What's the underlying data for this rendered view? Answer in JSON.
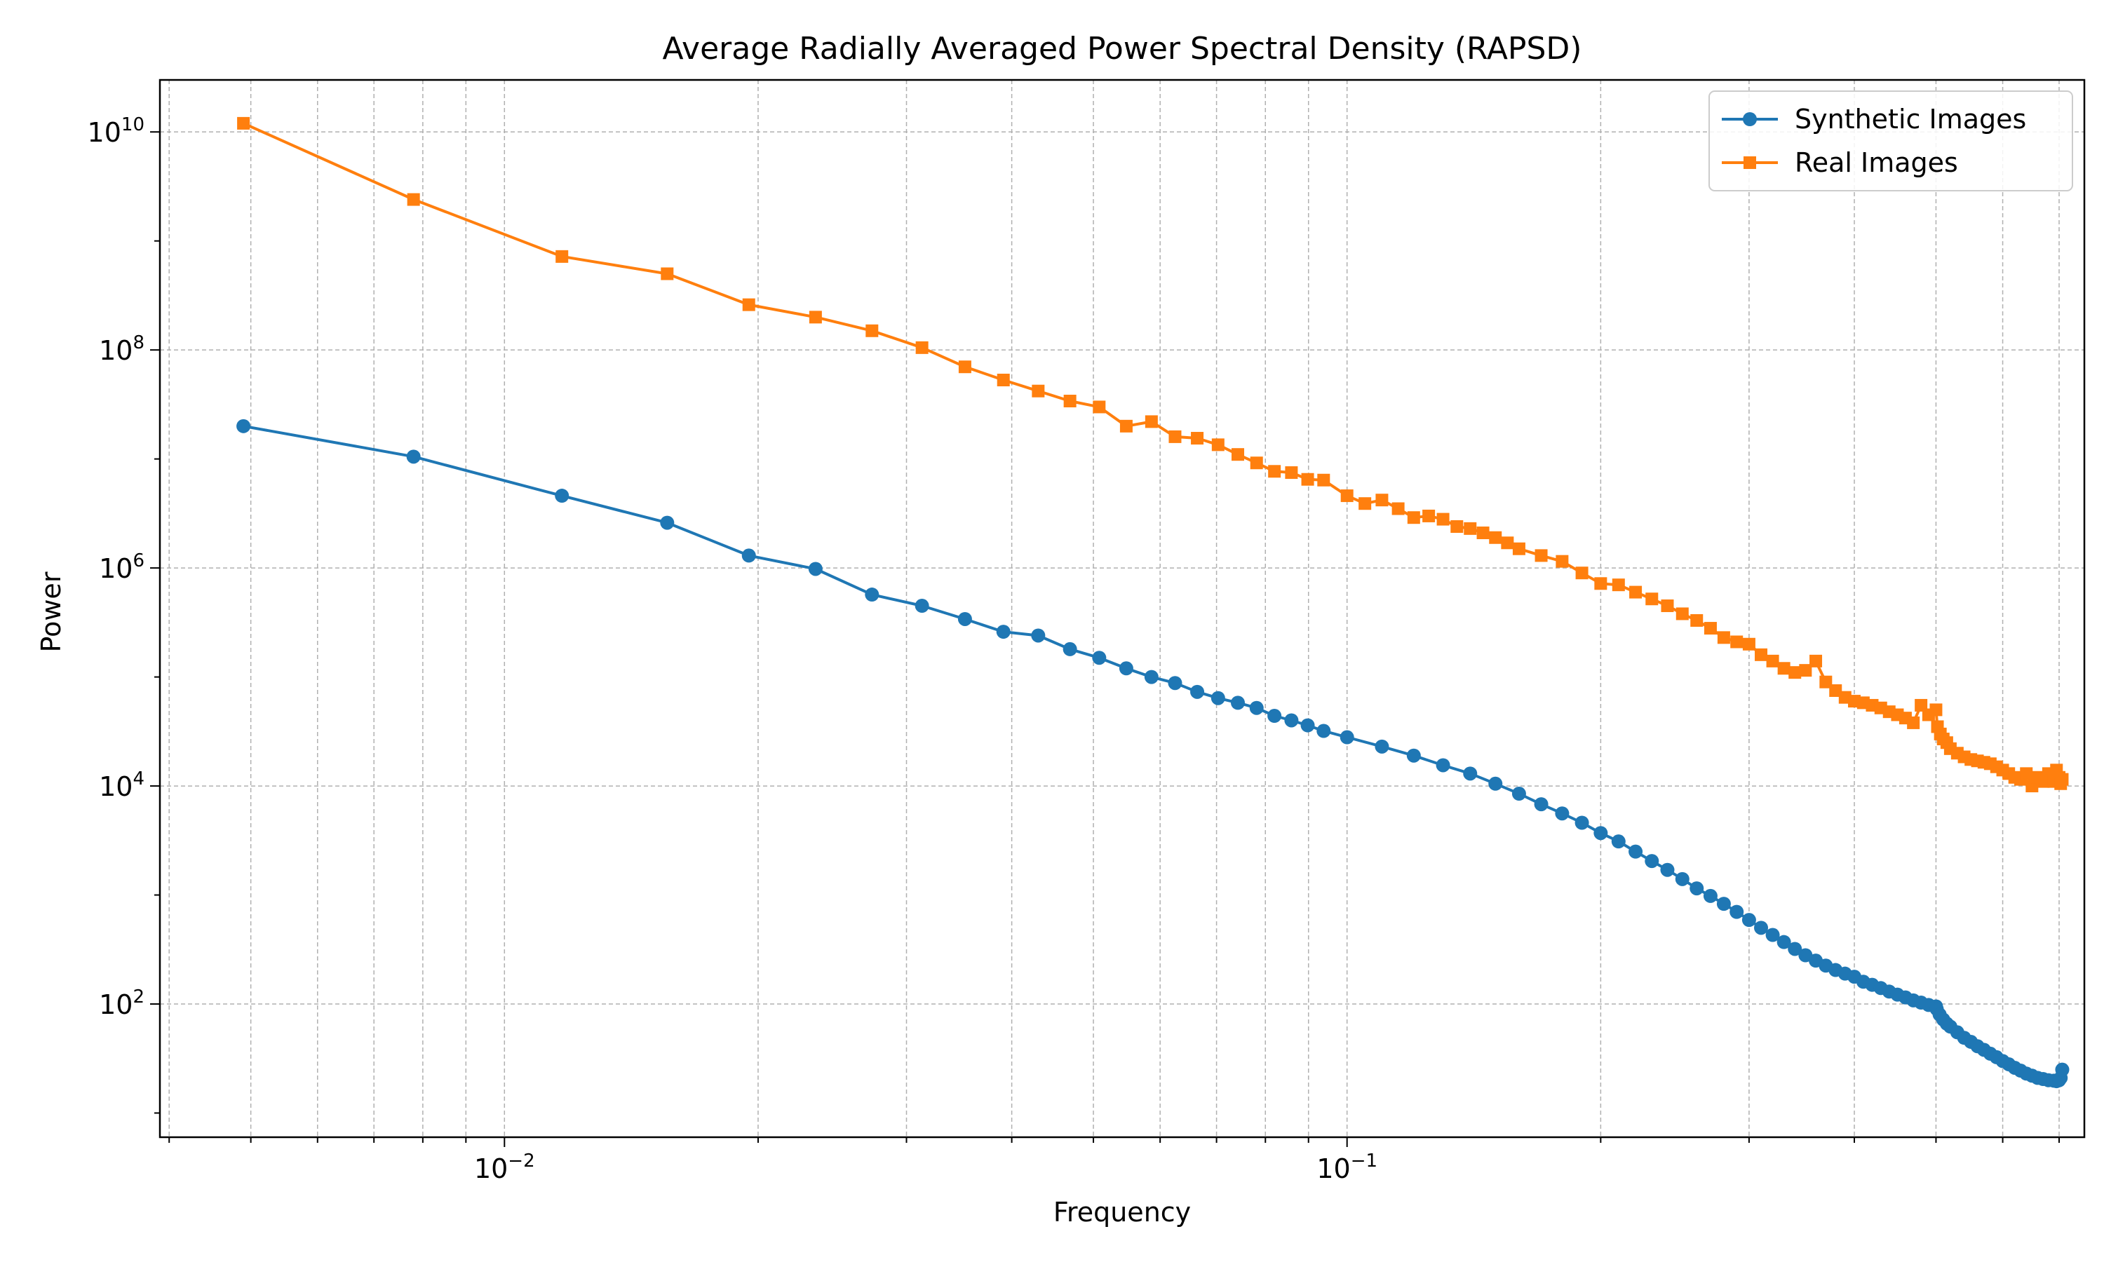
{
  "chart_data": {
    "type": "line",
    "title": "Average Radially Averaged Power Spectral Density (RAPSD)",
    "xlabel": "Frequency",
    "ylabel": "Power",
    "xscale": "log",
    "yscale": "log",
    "xlim": [
      0.0039,
      0.75
    ],
    "ylim": [
      6,
      30000000000.0
    ],
    "grid": true,
    "legend_position": "top-right",
    "x_ticks": [
      {
        "base": "10",
        "exp": "−2",
        "value": 0.01
      },
      {
        "base": "10",
        "exp": "−1",
        "value": 0.1
      }
    ],
    "y_ticks": [
      {
        "base": "10",
        "exp": "2",
        "value": 100
      },
      {
        "base": "10",
        "exp": "4",
        "value": 10000
      },
      {
        "base": "10",
        "exp": "6",
        "value": 1000000
      },
      {
        "base": "10",
        "exp": "8",
        "value": 100000000
      },
      {
        "base": "10",
        "exp": "10",
        "value": 10000000000
      }
    ],
    "series": [
      {
        "name": "Synthetic Images",
        "color": "#1f77b4",
        "marker": "circle",
        "x": [
          0.0049,
          0.0078,
          0.0117,
          0.0156,
          0.0195,
          0.0234,
          0.0273,
          0.0313,
          0.0352,
          0.0391,
          0.043,
          0.0469,
          0.0508,
          0.0547,
          0.0586,
          0.0625,
          0.0664,
          0.0703,
          0.0742,
          0.0781,
          0.082,
          0.0859,
          0.0898,
          0.0938,
          0.1,
          0.11,
          0.12,
          0.13,
          0.14,
          0.15,
          0.16,
          0.17,
          0.18,
          0.19,
          0.2,
          0.21,
          0.22,
          0.23,
          0.24,
          0.25,
          0.26,
          0.27,
          0.28,
          0.29,
          0.3,
          0.31,
          0.32,
          0.33,
          0.34,
          0.35,
          0.36,
          0.37,
          0.38,
          0.39,
          0.4,
          0.41,
          0.42,
          0.43,
          0.44,
          0.45,
          0.46,
          0.47,
          0.48,
          0.49,
          0.5,
          0.501,
          0.505,
          0.51,
          0.515,
          0.52,
          0.53,
          0.54,
          0.55,
          0.56,
          0.57,
          0.58,
          0.59,
          0.6,
          0.61,
          0.62,
          0.63,
          0.64,
          0.65,
          0.66,
          0.67,
          0.68,
          0.69,
          0.695,
          0.7,
          0.703,
          0.706
        ],
        "y": [
          20000000,
          10500000,
          4600000,
          2600000,
          1300000,
          980000,
          570000,
          450000,
          340000,
          260000,
          240000,
          180000,
          150000,
          120000,
          100000,
          88000,
          73000,
          64000,
          58000,
          52000,
          44000,
          40000,
          36000,
          32000,
          28000,
          23000,
          19000,
          15500,
          13000,
          10500,
          8500,
          6800,
          5600,
          4600,
          3700,
          3100,
          2500,
          2050,
          1700,
          1400,
          1150,
          980,
          830,
          700,
          590,
          500,
          430,
          370,
          320,
          280,
          250,
          225,
          205,
          190,
          178,
          160,
          150,
          140,
          130,
          122,
          115,
          108,
          103,
          98,
          95,
          90,
          80,
          72,
          66,
          62,
          55,
          49,
          45,
          41,
          38,
          35,
          32.5,
          30,
          28,
          26,
          24.5,
          23,
          22,
          21,
          20.5,
          20,
          19.8,
          19.6,
          20,
          21,
          25
        ]
      },
      {
        "name": "Real Images",
        "color": "#ff7f0e",
        "marker": "square",
        "x": [
          0.0049,
          0.0078,
          0.0117,
          0.0156,
          0.0195,
          0.0234,
          0.0273,
          0.0313,
          0.0352,
          0.0391,
          0.043,
          0.0469,
          0.0508,
          0.0547,
          0.0586,
          0.0625,
          0.0664,
          0.0703,
          0.0742,
          0.0781,
          0.082,
          0.0859,
          0.0898,
          0.0938,
          0.1,
          0.105,
          0.11,
          0.115,
          0.12,
          0.125,
          0.13,
          0.135,
          0.14,
          0.145,
          0.15,
          0.155,
          0.16,
          0.17,
          0.18,
          0.19,
          0.2,
          0.21,
          0.22,
          0.23,
          0.24,
          0.25,
          0.26,
          0.27,
          0.28,
          0.29,
          0.3,
          0.31,
          0.32,
          0.33,
          0.34,
          0.35,
          0.36,
          0.37,
          0.38,
          0.39,
          0.4,
          0.41,
          0.42,
          0.43,
          0.44,
          0.45,
          0.46,
          0.47,
          0.48,
          0.49,
          0.5,
          0.502,
          0.506,
          0.51,
          0.515,
          0.52,
          0.53,
          0.54,
          0.55,
          0.56,
          0.57,
          0.58,
          0.59,
          0.6,
          0.61,
          0.62,
          0.63,
          0.64,
          0.65,
          0.66,
          0.67,
          0.68,
          0.69,
          0.695,
          0.7,
          0.703,
          0.706
        ],
        "y": [
          12000000000,
          2400000000,
          720000000,
          500000000,
          260000000,
          200000000,
          150000000,
          105000000,
          70000000,
          53000000,
          42000000,
          34000000,
          30000000,
          20000000,
          22000000,
          16000000,
          15500000,
          13500000,
          11000000,
          9200000,
          7700000,
          7500000,
          6500000,
          6400000,
          4600000,
          3900000,
          4200000,
          3500000,
          2900000,
          3000000,
          2800000,
          2400000,
          2300000,
          2100000,
          1900000,
          1700000,
          1500000,
          1300000,
          1150000,
          900000,
          720000,
          700000,
          600000,
          520000,
          450000,
          380000,
          330000,
          280000,
          230000,
          210000,
          200000,
          160000,
          140000,
          120000,
          110000,
          115000,
          140000,
          90000,
          75000,
          65000,
          60000,
          58000,
          55000,
          52000,
          48000,
          45000,
          42000,
          38000,
          55000,
          45000,
          50000,
          35000,
          30000,
          27000,
          25000,
          22000,
          20000,
          18500,
          17500,
          17000,
          16500,
          16000,
          15000,
          14000,
          13000,
          12000,
          11500,
          13000,
          10000,
          12000,
          11000,
          13000,
          11000,
          14000,
          12000,
          10500,
          11500
        ]
      }
    ]
  }
}
